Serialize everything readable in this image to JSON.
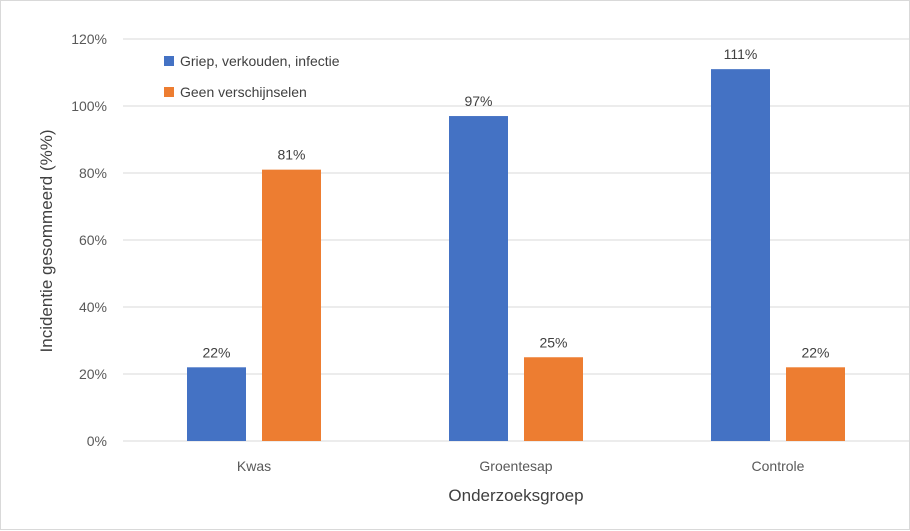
{
  "chart_data": {
    "type": "bar",
    "title": "",
    "xlabel": "Onderzoeksgroep",
    "ylabel": "Incidentie gesommeerd (%%)",
    "categories": [
      "Kwas",
      "Groentesap",
      "Controle"
    ],
    "series": [
      {
        "name": "Griep, verkouden, infectie",
        "color": "#4472c4",
        "values": [
          22,
          97,
          111
        ],
        "labels": [
          "22%",
          "97%",
          "111%"
        ]
      },
      {
        "name": "Geen verschijnselen",
        "color": "#ed7d31",
        "values": [
          81,
          25,
          22
        ],
        "labels": [
          "81%",
          "25%",
          "22%"
        ]
      }
    ],
    "ylim": [
      0,
      120
    ],
    "yticks": [
      0,
      20,
      40,
      60,
      80,
      100,
      120
    ],
    "ytick_labels": [
      "0%",
      "20%",
      "40%",
      "60%",
      "80%",
      "100%",
      "120%"
    ],
    "grid": true,
    "legend_position": "top-left",
    "gridline_color": "#d9d9d9"
  }
}
